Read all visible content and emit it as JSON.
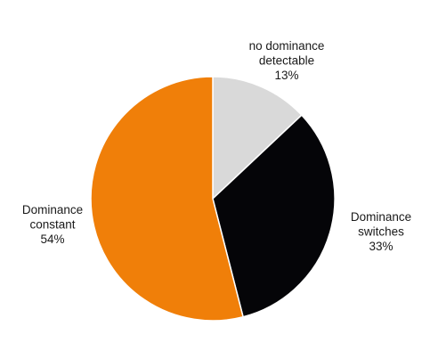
{
  "chart_data": {
    "type": "pie",
    "start_angle_deg": 0,
    "direction": "clockwise",
    "slices": [
      {
        "label_lines": [
          "no dominance",
          "detectable"
        ],
        "pct_label": "13%",
        "value": 13,
        "color": "#d9d9d9"
      },
      {
        "label_lines": [
          "Dominance",
          "switches"
        ],
        "pct_label": "33%",
        "value": 33,
        "color": "#050508"
      },
      {
        "label_lines": [
          "Dominance",
          "constant"
        ],
        "pct_label": "54%",
        "value": 54,
        "color": "#f07f09"
      }
    ],
    "slice_border_color": "#ffffff",
    "legend": "none"
  }
}
